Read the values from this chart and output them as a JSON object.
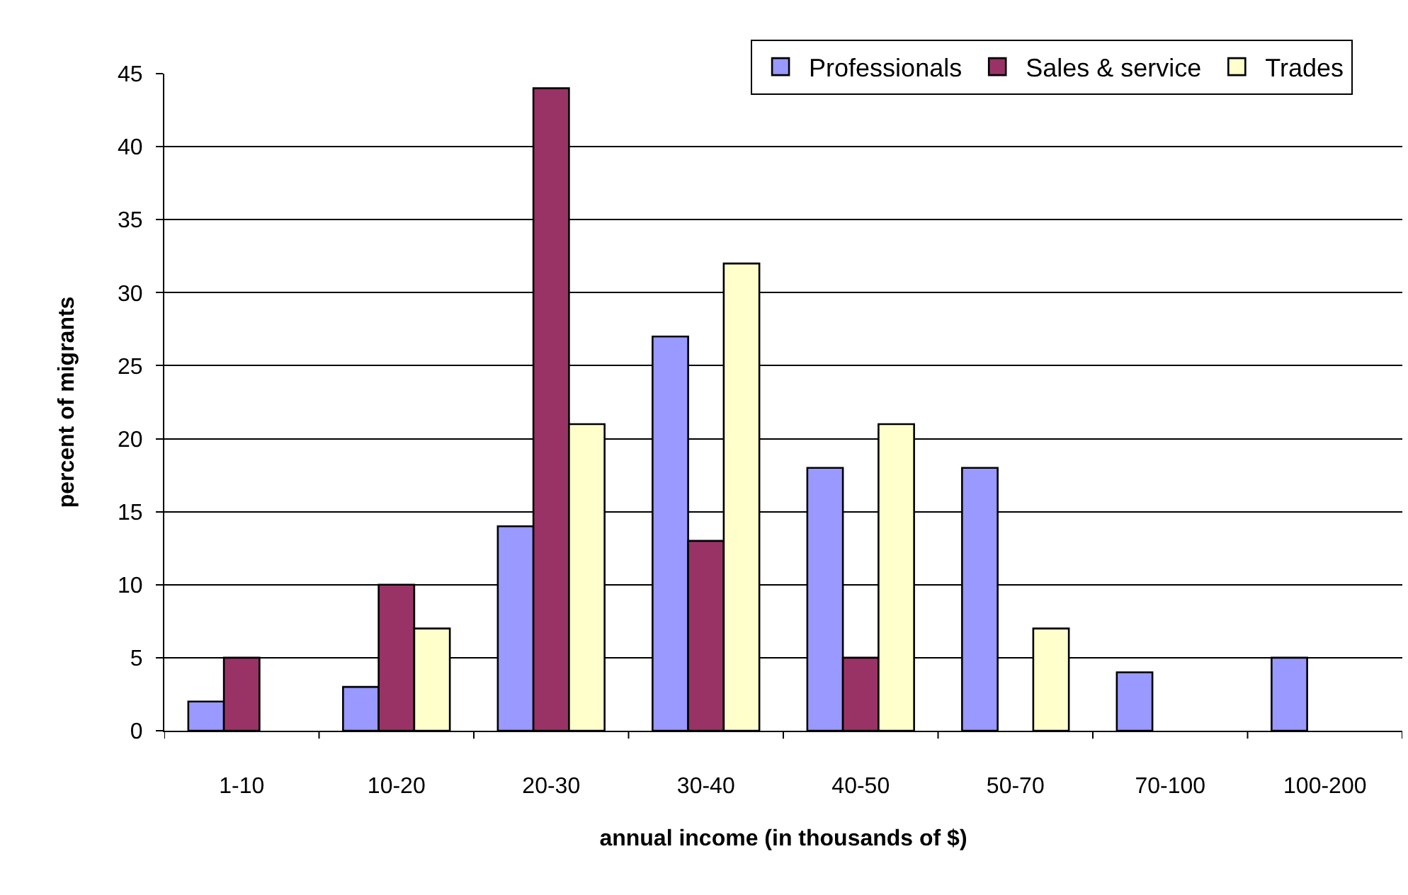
{
  "chart_data": {
    "type": "bar",
    "xlabel": "annual income (in thousands of $)",
    "ylabel": "percent of migrants",
    "categories": [
      "1-10",
      "10-20",
      "20-30",
      "30-40",
      "40-50",
      "50-70",
      "70-100",
      "100-200"
    ],
    "series": [
      {
        "name": "Professionals",
        "color": "#9999ff",
        "values": [
          2,
          3,
          14,
          27,
          18,
          18,
          4,
          5
        ]
      },
      {
        "name": "Sales & service",
        "color": "#993366",
        "values": [
          5,
          10,
          44,
          13,
          5,
          null,
          null,
          null
        ]
      },
      {
        "name": "Trades",
        "color": "#ffffcc",
        "values": [
          null,
          7,
          21,
          32,
          21,
          7,
          null,
          null
        ]
      }
    ],
    "ylim": [
      0,
      45
    ],
    "yticks": [
      0,
      5,
      10,
      15,
      20,
      25,
      30,
      35,
      40,
      45
    ],
    "grid": "y",
    "legend": "top right"
  }
}
